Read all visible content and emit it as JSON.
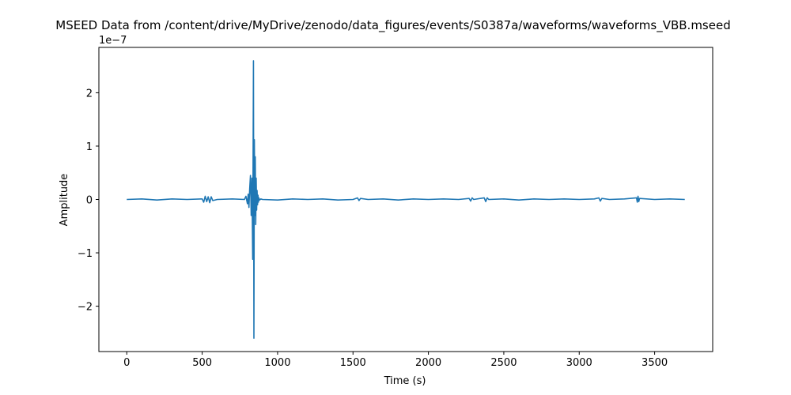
{
  "chart_data": {
    "type": "line",
    "title": "MSEED Data from /content/drive/MyDrive/zenodo/data_figures/events/S0387a/waveforms/waveforms_VBB.mseed",
    "xlabel": "Time (s)",
    "ylabel": "Amplitude",
    "y_offset_label": "1e−7",
    "xlim": [
      -185,
      3885
    ],
    "ylim": [
      -2.85,
      2.85
    ],
    "x_ticks": [
      0,
      500,
      1000,
      1500,
      2000,
      2500,
      3000,
      3500
    ],
    "x_tick_labels": [
      "0",
      "500",
      "1000",
      "1500",
      "2000",
      "2500",
      "3000",
      "3500"
    ],
    "y_ticks": [
      -2,
      -1,
      0,
      1,
      2
    ],
    "y_tick_labels": [
      "−2",
      "−1",
      "0",
      "1",
      "2"
    ],
    "grid": false,
    "line_color": "#1f77b4",
    "series": [
      {
        "x": [
          0,
          100,
          200,
          300,
          400,
          500,
          510,
          520,
          530,
          540,
          550,
          560,
          570,
          600,
          700,
          780,
          790,
          800,
          805,
          810,
          815,
          820,
          825,
          830,
          835,
          840,
          843,
          846,
          849,
          852,
          855,
          858,
          861,
          864,
          867,
          870,
          873,
          876,
          880,
          890,
          900,
          1000,
          1100,
          1200,
          1300,
          1400,
          1500,
          1530,
          1540,
          1550,
          1600,
          1700,
          1800,
          1900,
          2000,
          2100,
          2200,
          2270,
          2280,
          2290,
          2300,
          2370,
          2380,
          2390,
          2400,
          2500,
          2600,
          2700,
          2800,
          2900,
          3000,
          3100,
          3130,
          3140,
          3150,
          3200,
          3300,
          3380,
          3385,
          3390,
          3395,
          3400,
          3500,
          3600,
          3700
        ],
        "y": [
          0,
          0.01,
          -0.01,
          0.01,
          0,
          0.01,
          -0.05,
          0.06,
          -0.04,
          0.05,
          -0.06,
          0.05,
          -0.02,
          0,
          0.01,
          0,
          0.06,
          -0.08,
          0.1,
          -0.15,
          0.2,
          0.45,
          -0.3,
          0.4,
          -1.12,
          2.6,
          -2.6,
          1.12,
          -0.3,
          0.8,
          -0.47,
          0.4,
          -0.2,
          0.17,
          -0.1,
          0.08,
          -0.05,
          0.03,
          -0.01,
          0.01,
          0,
          -0.01,
          0.01,
          0,
          0.01,
          -0.01,
          0,
          0.03,
          -0.02,
          0.02,
          0,
          0.01,
          -0.01,
          0.01,
          0,
          0.01,
          0,
          0.02,
          -0.03,
          0.03,
          0,
          0.03,
          -0.04,
          0.03,
          0,
          0.01,
          -0.01,
          0.01,
          0,
          0.01,
          0,
          0.01,
          0.03,
          -0.03,
          0.02,
          0,
          0.01,
          0.03,
          -0.05,
          0.06,
          -0.04,
          0.02,
          0,
          0.01,
          0
        ]
      }
    ]
  }
}
